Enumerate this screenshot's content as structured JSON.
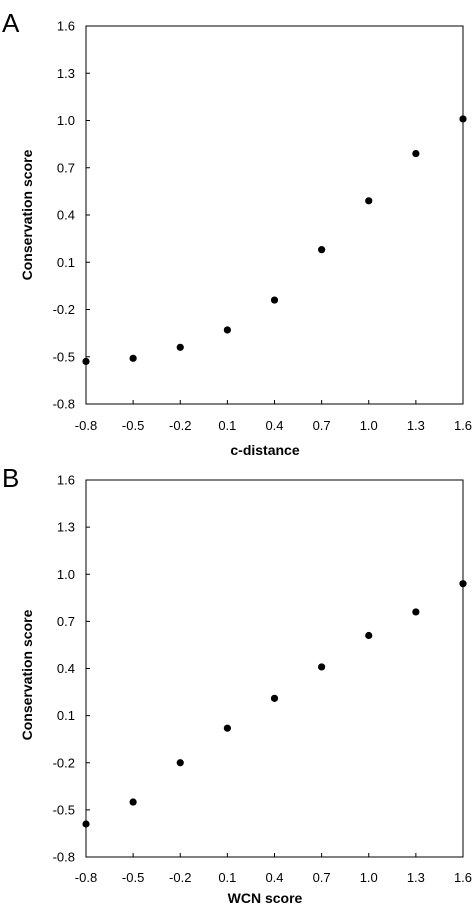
{
  "chart_data": [
    {
      "type": "scatter",
      "panel_label": "A",
      "title": "",
      "xlabel": "c-distance",
      "ylabel": "Conservation score",
      "xlim": [
        -0.8,
        1.6
      ],
      "ylim": [
        -0.8,
        1.6
      ],
      "x_ticks": [
        "-0.8",
        "-0.5",
        "-0.2",
        "0.1",
        "0.4",
        "0.7",
        "1.0",
        "1.3",
        "1.6"
      ],
      "y_ticks": [
        "-0.8",
        "-0.5",
        "-0.2",
        "0.1",
        "0.4",
        "0.7",
        "1.0",
        "1.3",
        "1.6"
      ],
      "grid": false,
      "marker_color": "#000000",
      "points": [
        {
          "x": -0.8,
          "y": -0.53
        },
        {
          "x": -0.5,
          "y": -0.51
        },
        {
          "x": -0.2,
          "y": -0.44
        },
        {
          "x": 0.1,
          "y": -0.33
        },
        {
          "x": 0.4,
          "y": -0.14
        },
        {
          "x": 0.7,
          "y": 0.18
        },
        {
          "x": 1.0,
          "y": 0.49
        },
        {
          "x": 1.3,
          "y": 0.79
        },
        {
          "x": 1.6,
          "y": 1.01
        }
      ]
    },
    {
      "type": "scatter",
      "panel_label": "B",
      "title": "",
      "xlabel": "WCN score",
      "ylabel": "Conservation score",
      "xlim": [
        -0.8,
        1.6
      ],
      "ylim": [
        -0.8,
        1.6
      ],
      "x_ticks": [
        "-0.8",
        "-0.5",
        "-0.2",
        "0.1",
        "0.4",
        "0.7",
        "1.0",
        "1.3",
        "1.6"
      ],
      "y_ticks": [
        "-0.8",
        "-0.5",
        "-0.2",
        "0.1",
        "0.4",
        "0.7",
        "1.0",
        "1.3",
        "1.6"
      ],
      "grid": false,
      "marker_color": "#000000",
      "points": [
        {
          "x": -0.8,
          "y": -0.59
        },
        {
          "x": -0.5,
          "y": -0.45
        },
        {
          "x": -0.2,
          "y": -0.2
        },
        {
          "x": 0.1,
          "y": 0.02
        },
        {
          "x": 0.4,
          "y": 0.21
        },
        {
          "x": 0.7,
          "y": 0.41
        },
        {
          "x": 1.0,
          "y": 0.61
        },
        {
          "x": 1.3,
          "y": 0.76
        },
        {
          "x": 1.6,
          "y": 0.94
        }
      ]
    }
  ]
}
